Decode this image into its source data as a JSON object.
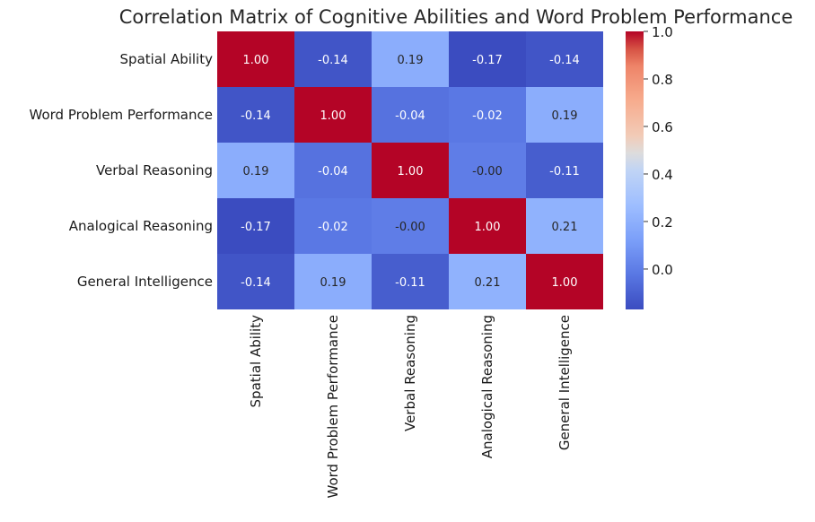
{
  "chart_data": {
    "type": "heatmap",
    "title": "Correlation Matrix of Cognitive Abilities and Word Problem Performance",
    "row_labels": [
      "Spatial Ability",
      "Word Problem Performance",
      "Verbal Reasoning",
      "Analogical Reasoning",
      "General Intelligence"
    ],
    "col_labels": [
      "Spatial Ability",
      "Word Problem Performance",
      "Verbal Reasoning",
      "Analogical Reasoning",
      "General Intelligence"
    ],
    "values": [
      [
        1.0,
        -0.14,
        0.19,
        -0.17,
        -0.14
      ],
      [
        -0.14,
        1.0,
        -0.04,
        -0.02,
        0.19
      ],
      [
        0.19,
        -0.04,
        1.0,
        -0.0,
        -0.11
      ],
      [
        -0.17,
        -0.02,
        -0.0,
        1.0,
        0.21
      ],
      [
        -0.14,
        0.19,
        -0.11,
        0.21,
        1.0
      ]
    ],
    "value_labels": [
      [
        "1.00",
        "-0.14",
        "0.19",
        "-0.17",
        "-0.14"
      ],
      [
        "-0.14",
        "1.00",
        "-0.04",
        "-0.02",
        "0.19"
      ],
      [
        "0.19",
        "-0.04",
        "1.00",
        "-0.00",
        "-0.11"
      ],
      [
        "-0.17",
        "-0.02",
        "-0.00",
        "1.00",
        "0.21"
      ],
      [
        "-0.14",
        "0.19",
        "-0.11",
        "0.21",
        "1.00"
      ]
    ],
    "colormap": "coolwarm",
    "vmin": -0.17,
    "vmax": 1.0,
    "colorbar_ticks": [
      0.0,
      0.2,
      0.4,
      0.6,
      0.8,
      1.0
    ],
    "colorbar_tick_labels": [
      "0.0",
      "0.2",
      "0.4",
      "0.6",
      "0.8",
      "1.0"
    ],
    "colorbar_position": "right",
    "grid": false
  }
}
